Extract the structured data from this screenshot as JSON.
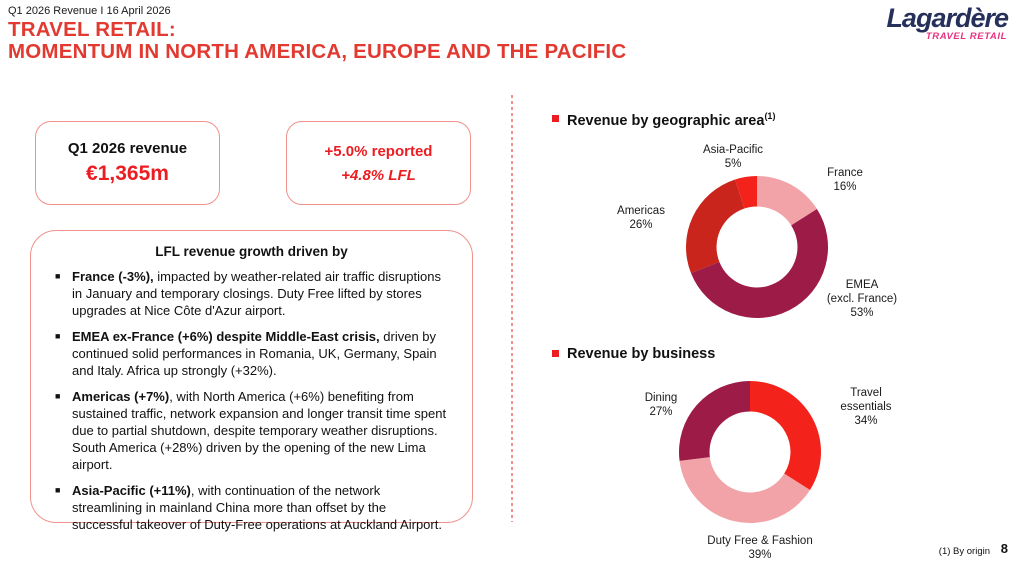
{
  "meta": {
    "slide_label": "Q1 2026 Revenue I 16 April 2026",
    "footnote": "(1) By origin",
    "page_number": "8"
  },
  "header": {
    "title_line1": "TRAVEL RETAIL:",
    "title_line2": "MOMENTUM IN NORTH AMERICA, EUROPE AND THE PACIFIC"
  },
  "logo": {
    "brand": "Lagardère",
    "division": "TRAVEL RETAIL"
  },
  "colors": {
    "title_red": "#E23A30",
    "accent_red": "#EC1D22",
    "border_salmon": "#F0918B",
    "logo_navy": "#26305B",
    "logo_pink": "#E63380",
    "donut_pink": "#F2A3A8",
    "donut_maroon": "#9C1B47",
    "donut_red": "#C9251C",
    "donut_bright_red": "#F3231B"
  },
  "summary": {
    "revenue_box": {
      "title": "Q1 2026 revenue",
      "value": "€1,365m"
    },
    "growth_box": {
      "reported": "+5.0% reported",
      "lfl": "+4.8% LFL"
    }
  },
  "drivers": {
    "title": "LFL revenue growth driven by",
    "items": [
      {
        "lead": "France (-3%),",
        "text": " impacted by weather-related air traffic disruptions in January and temporary closings. Duty Free lifted by stores upgrades at Nice Côte d'Azur airport."
      },
      {
        "lead": "EMEA ex-France (+6%) despite Middle-East crisis,",
        "text": " driven by continued solid performances in Romania, UK, Germany, Spain and Italy. Africa up strongly (+32%)."
      },
      {
        "lead": "Americas (+7%)",
        "text": ", with North America (+6%) benefiting from sustained traffic, network expansion and longer transit time spent due to partial shutdown, despite temporary weather disruptions. South America (+28%) driven by the opening of the new Lima airport."
      },
      {
        "lead": "Asia-Pacific (+11%)",
        "text": ", with continuation of the network streamlining in mainland China more than offset by the successful takeover of Duty-Free operations at Auckland Airport."
      }
    ]
  },
  "chart_data": [
    {
      "type": "donut",
      "title": "Revenue by geographic area",
      "title_superscript": "(1)",
      "start_angle_deg": 0,
      "direction": "clockwise",
      "inner_radius_ratio": 0.57,
      "slices": [
        {
          "label": "France",
          "line1": "France",
          "pct_label": "16%",
          "value": 16,
          "color": "#F2A3A8"
        },
        {
          "label": "EMEA (excl. France)",
          "line1": "EMEA",
          "line2": "(excl. France)",
          "pct_label": "53%",
          "value": 53,
          "color": "#9C1B47"
        },
        {
          "label": "Americas",
          "line1": "Americas",
          "pct_label": "26%",
          "value": 26,
          "color": "#C9251C"
        },
        {
          "label": "Asia-Pacific",
          "line1": "Asia-Pacific",
          "pct_label": "5%",
          "value": 5,
          "color": "#F3231B"
        }
      ]
    },
    {
      "type": "donut",
      "title": "Revenue by business",
      "start_angle_deg": 0,
      "direction": "clockwise",
      "inner_radius_ratio": 0.57,
      "slices": [
        {
          "label": "Travel essentials",
          "line1": "Travel",
          "line2": "essentials",
          "pct_label": "34%",
          "value": 34,
          "color": "#F3231B"
        },
        {
          "label": "Duty Free & Fashion",
          "line1": "Duty Free & Fashion",
          "pct_label": "39%",
          "value": 39,
          "color": "#F2A3A8"
        },
        {
          "label": "Dining",
          "line1": "Dining",
          "pct_label": "27%",
          "value": 27,
          "color": "#9C1B47"
        }
      ]
    }
  ]
}
